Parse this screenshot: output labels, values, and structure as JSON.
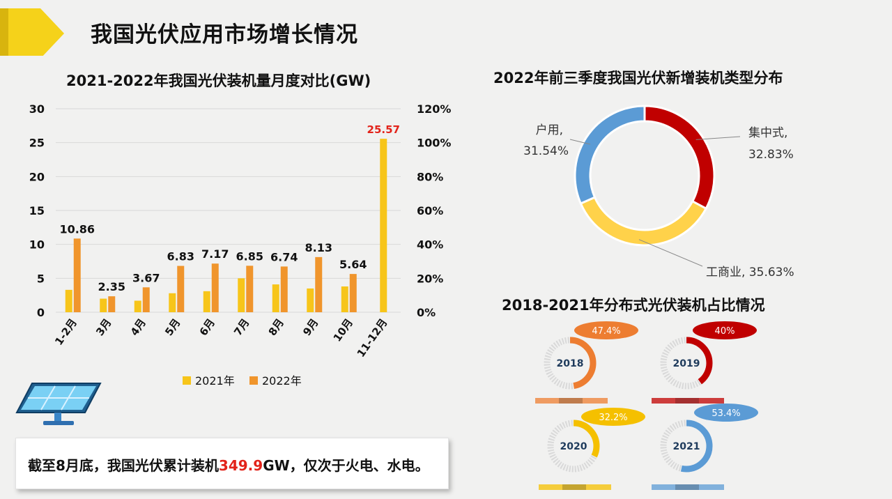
{
  "page_title": "我国光伏应用市场增长情况",
  "colors": {
    "accent_yellow": "#f5d21a",
    "bar_2021": "#f7c51a",
    "bar_2022": "#f0952c",
    "red": "#c00000",
    "blue": "#5b9bd5",
    "orange": "#ed7d31",
    "yellow": "#ffd24a"
  },
  "chart_data": [
    {
      "type": "bar",
      "title": "2021-2022年我国光伏装机量月度对比(GW)",
      "categories": [
        "1-2月",
        "3月",
        "4月",
        "5月",
        "6月",
        "7月",
        "8月",
        "9月",
        "10月",
        "11-12月"
      ],
      "series": [
        {
          "name": "2021年",
          "values": [
            3.3,
            2.0,
            1.7,
            2.8,
            3.1,
            5.0,
            4.1,
            3.5,
            3.8,
            0
          ]
        },
        {
          "name": "2022年",
          "values": [
            10.86,
            2.35,
            3.67,
            6.83,
            7.17,
            6.85,
            6.74,
            8.13,
            5.64,
            25.57
          ]
        }
      ],
      "data_labels": [
        "10.86",
        "2.35",
        "3.67",
        "6.83",
        "7.17",
        "6.85",
        "6.74",
        "8.13",
        "5.64",
        "25.57"
      ],
      "ylim": [
        0,
        30
      ],
      "y_ticks": [
        "0",
        "5",
        "10",
        "15",
        "20",
        "25",
        "30"
      ],
      "y2_ticks": [
        "0%",
        "20%",
        "40%",
        "60%",
        "80%",
        "100%",
        "120%"
      ],
      "legend_position": "bottom",
      "grid": true
    },
    {
      "type": "pie",
      "title": "2022年前三季度我国光伏新增装机类型分布",
      "slices": [
        {
          "name": "集中式",
          "value": 32.83,
          "name_label": "集中式,",
          "pct_label": "32.83%",
          "color": "#c00000"
        },
        {
          "name": "工商业",
          "value": 35.63,
          "label": "工商业, 35.63%",
          "color": "#ffd24a"
        },
        {
          "name": "户用",
          "value": 31.54,
          "name_label": "户用,",
          "pct_label": "31.54%",
          "color": "#5b9bd5"
        }
      ]
    },
    {
      "type": "pie",
      "title": "2018-2021年分布式光伏装机占比情况",
      "items": [
        {
          "year": "2018",
          "value": 47.4,
          "label": "47.4%",
          "color": "#ed7d31"
        },
        {
          "year": "2019",
          "value": 40,
          "label": "40%",
          "color": "#c00000"
        },
        {
          "year": "2020",
          "value": 32.2,
          "label": "32.2%",
          "color": "#f5c000"
        },
        {
          "year": "2021",
          "value": 53.4,
          "label": "53.4%",
          "color": "#5b9bd5"
        }
      ]
    }
  ],
  "summary": {
    "pre": "截至8月底，我国光伏累计装机",
    "highlight": "349.9",
    "post": "GW，仅次于火电、水电。"
  }
}
